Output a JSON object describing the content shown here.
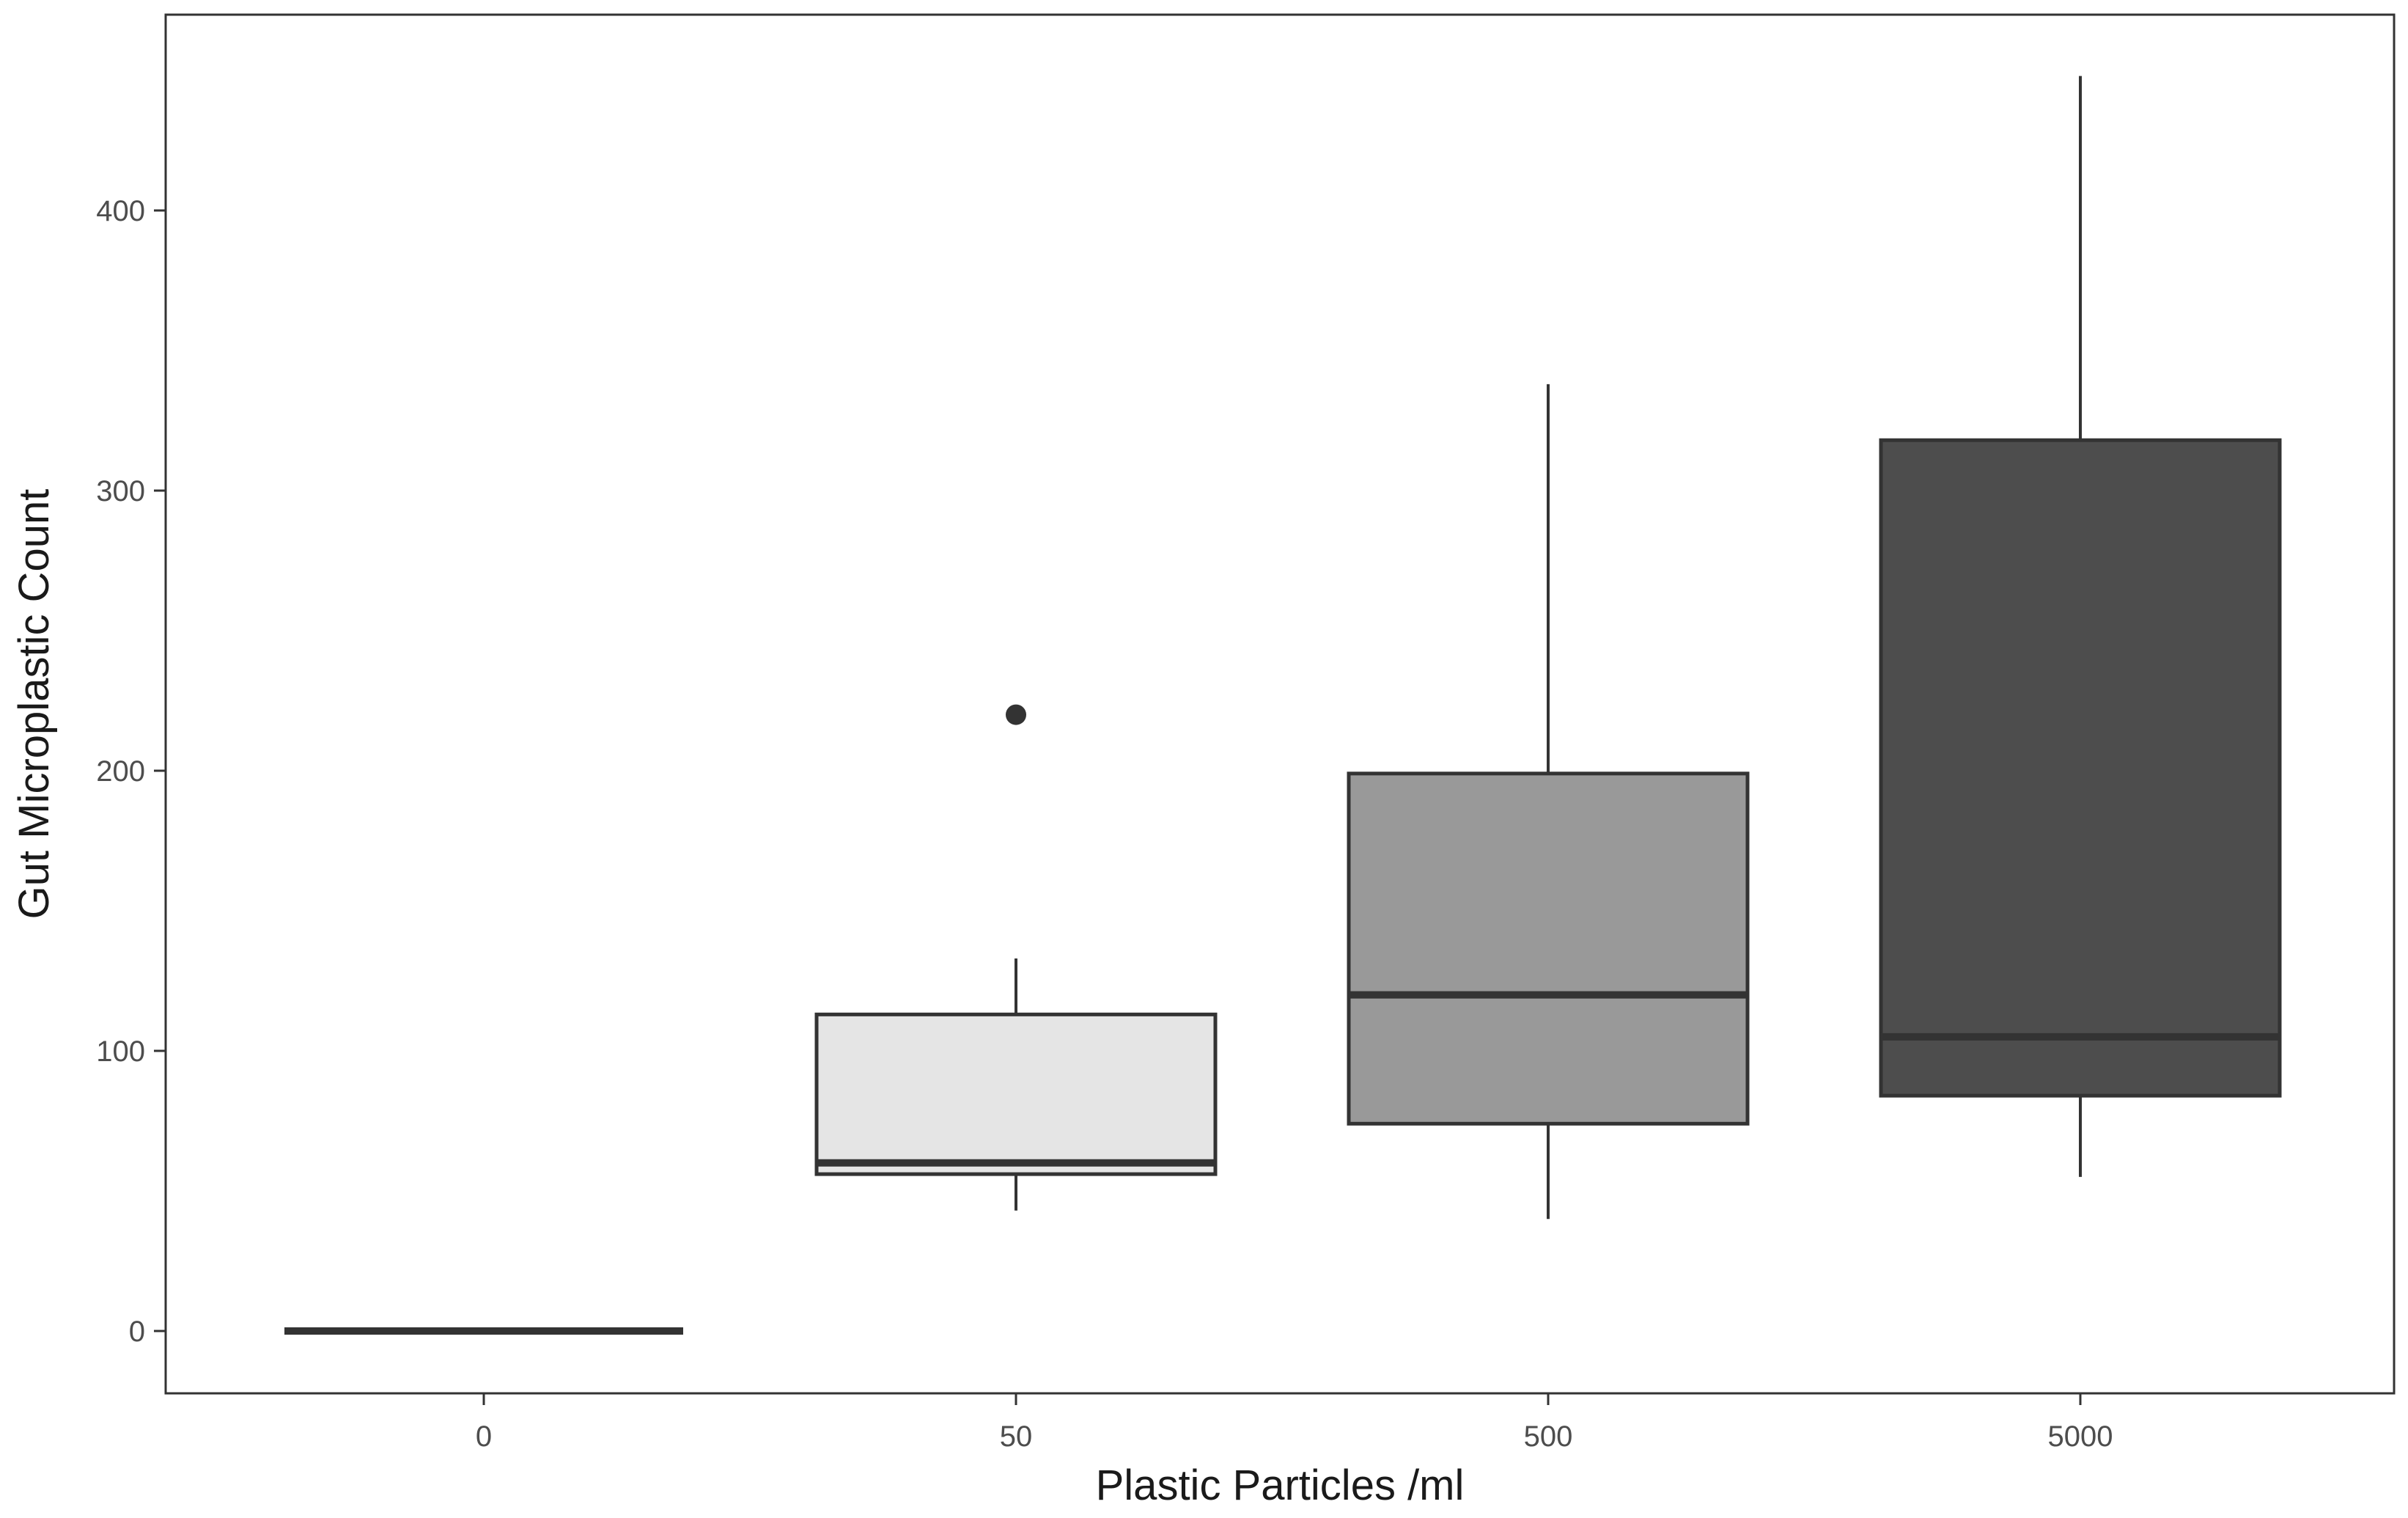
{
  "chart_data": {
    "type": "boxplot",
    "title": "",
    "xlabel": "Plastic Particles /ml",
    "ylabel": "Gut Microplastic Count",
    "ylim": [
      -22,
      470
    ],
    "yticks": [
      0,
      100,
      200,
      300,
      400
    ],
    "grid": false,
    "legend": "none",
    "categories": [
      "0",
      "50",
      "500",
      "5000"
    ],
    "boxes": [
      {
        "category": "0",
        "min": 0,
        "q1": 0,
        "median": 0,
        "q3": 0,
        "max": 0,
        "outliers": [],
        "fill": "#ffffff"
      },
      {
        "category": "50",
        "min": 43,
        "q1": 56,
        "median": 60,
        "q3": 113,
        "max": 133,
        "outliers": [
          220
        ],
        "fill": "#e5e5e5"
      },
      {
        "category": "500",
        "min": 40,
        "q1": 74,
        "median": 120,
        "q3": 199,
        "max": 338,
        "outliers": [],
        "fill": "#999999"
      },
      {
        "category": "5000",
        "min": 55,
        "q1": 84,
        "median": 105,
        "q3": 318,
        "max": 448,
        "outliers": [],
        "fill": "#4d4d4d"
      }
    ],
    "colors": {
      "line": "#333333",
      "panel_border": "#333333",
      "tick": "#333333"
    }
  }
}
